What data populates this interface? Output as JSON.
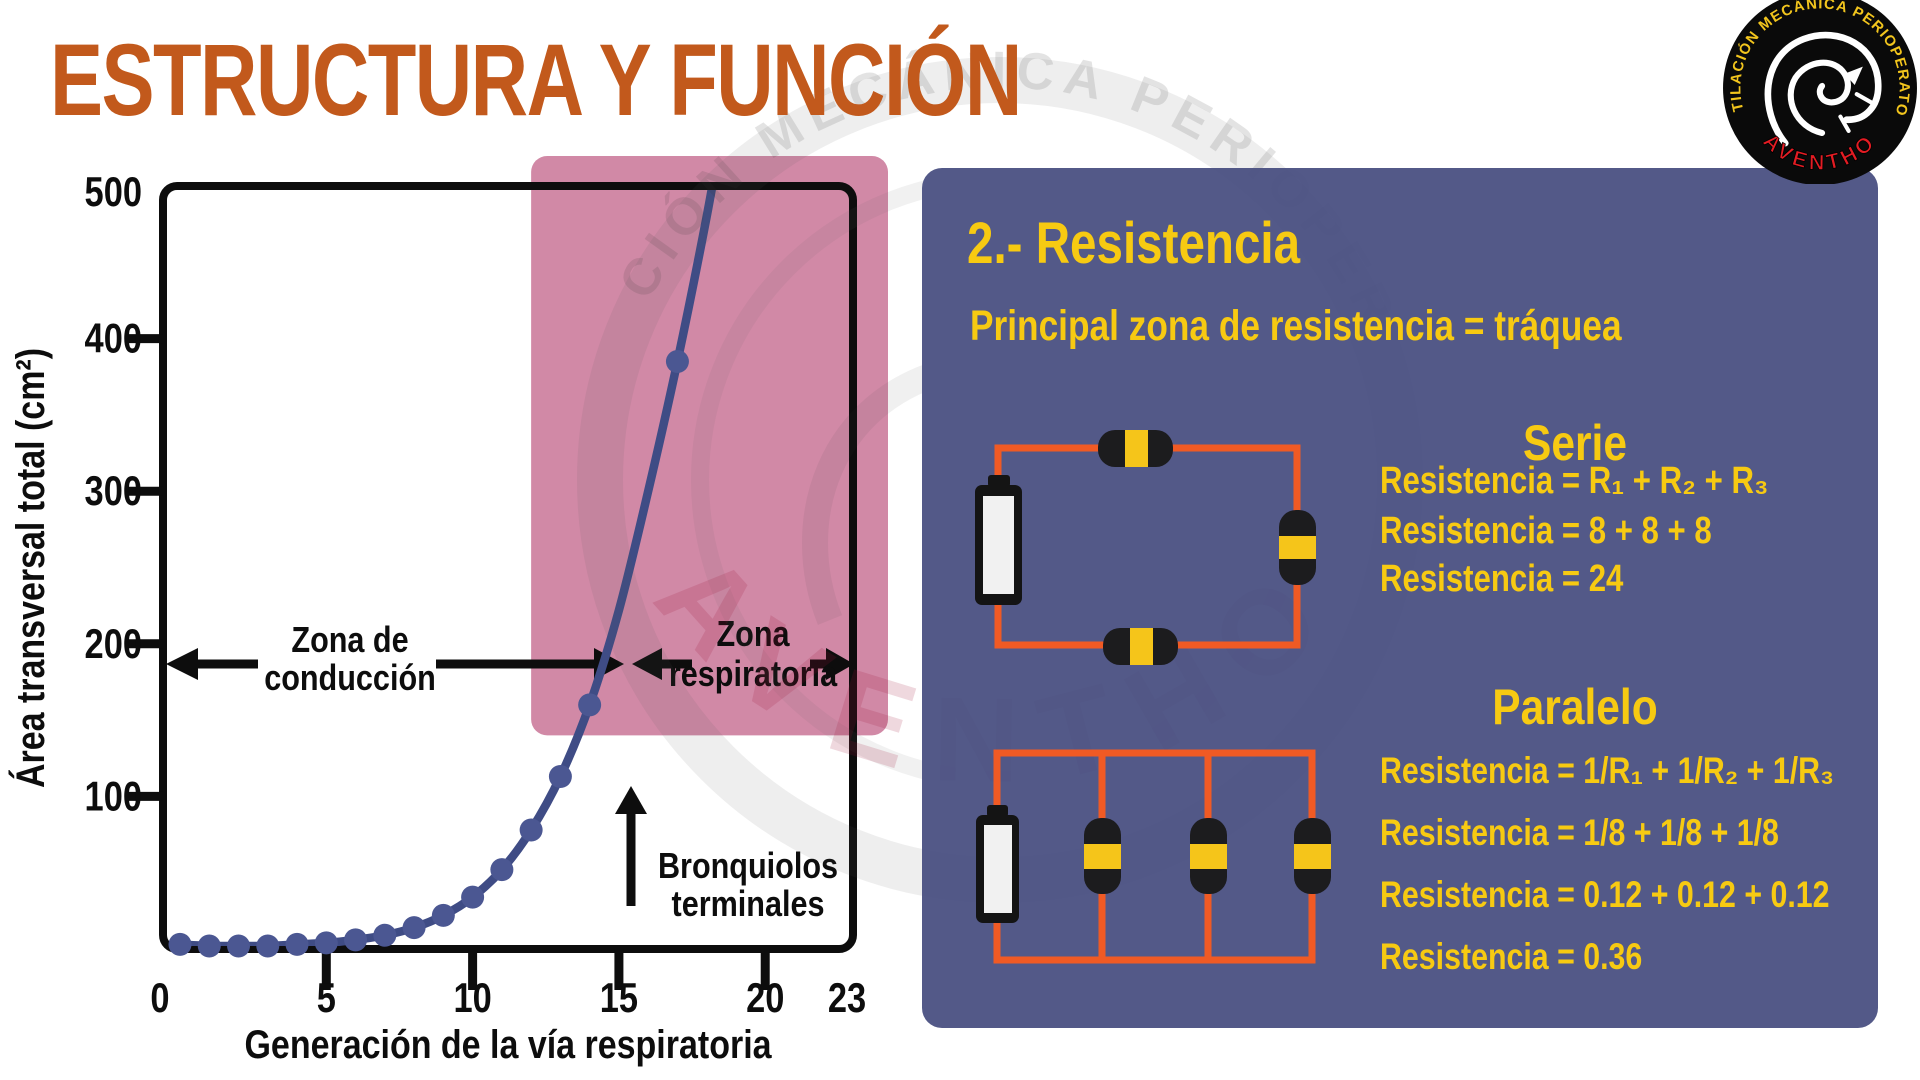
{
  "title": "ESTRUCTURA Y FUNCIÓN",
  "colors": {
    "title_orange": "#c2591c",
    "panel_navy": "#4a4f81",
    "accent_yellow": "#f7ca12",
    "pink_zone": "#d293ae",
    "wire_orange": "#f05a24",
    "curve_blue": "#3f4c85",
    "resistor_yellow": "#f5c51a"
  },
  "logo": {
    "ring_text": "VENTILACIÓN MECÁNICA PERIOPERATORIA",
    "brand": "AVENTHO"
  },
  "watermark": {
    "ring_text": "VENTILACIÓN MECÁNICA PERIOPERATORIA",
    "brand": "AVENTHO"
  },
  "chart_data": {
    "type": "line",
    "title": "",
    "xlabel": "Generación de la vía respiratoria",
    "ylabel": "Área transversal total (cm²)",
    "xlim": [
      0,
      23
    ],
    "ylim": [
      0,
      500
    ],
    "x_ticks": [
      0,
      5,
      10,
      15,
      20,
      23
    ],
    "y_ticks": [
      100,
      200,
      300,
      400,
      500
    ],
    "grid": false,
    "x": [
      0,
      1,
      2,
      3,
      4,
      5,
      6,
      7,
      8,
      9,
      10,
      11,
      12,
      13,
      14,
      15,
      16,
      17,
      18,
      18.6
    ],
    "values": [
      3,
      2,
      2,
      2,
      3,
      4,
      6,
      9,
      14,
      22,
      34,
      52,
      78,
      113,
      160,
      222,
      300,
      385,
      480,
      545
    ],
    "marker_generations": [
      0,
      1,
      2,
      3,
      4,
      5,
      6,
      7,
      8,
      9,
      10,
      11,
      12,
      13,
      14,
      17
    ],
    "highlight_region": {
      "label": "Zona respiratoria",
      "x_range": [
        12,
        23
      ],
      "y_range": [
        140,
        500
      ]
    },
    "annotations": {
      "conduction_zone": [
        "Zona de",
        "conducción"
      ],
      "respiratory_zone": [
        "Zona",
        "respiratoria"
      ],
      "terminal_bronchioles": [
        "Bronquiolos",
        "terminales"
      ]
    }
  },
  "panel": {
    "heading": "2.- Resistencia",
    "subtitle": "Principal zona de resistencia = tráquea",
    "series_section": {
      "heading": "Serie",
      "lines": [
        "Resistencia = R₁ + R₂ + R₃",
        "Resistencia = 8 + 8 + 8",
        "Resistencia = 24"
      ]
    },
    "parallel_section": {
      "heading": "Paralelo",
      "lines": [
        "Resistencia = 1/R₁ + 1/R₂ + 1/R₃",
        "Resistencia = 1/8 + 1/8 + 1/8",
        "Resistencia = 0.12 + 0.12 + 0.12",
        "Resistencia = 0.36"
      ]
    }
  }
}
